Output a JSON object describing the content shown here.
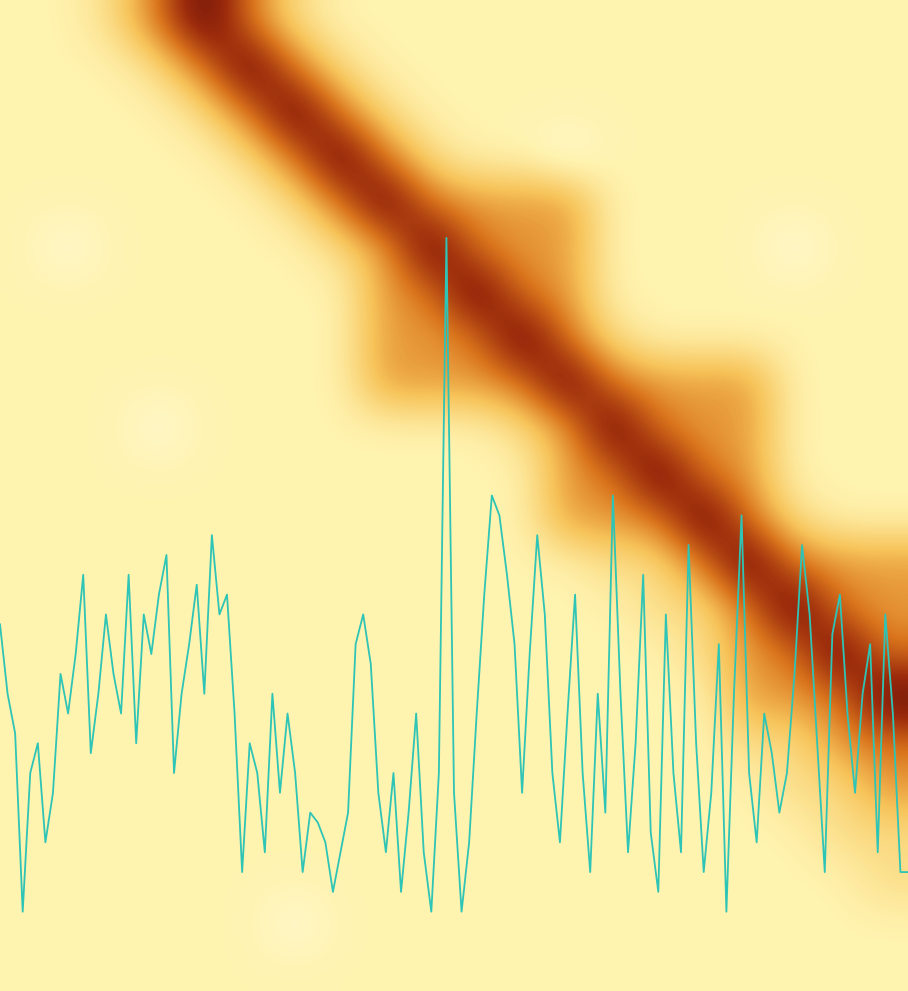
{
  "chart_data": {
    "type": "heatmap",
    "tick_labels": false,
    "color_range": [
      0,
      10
    ],
    "cells": [
      [
        2,
        2,
        3,
        6,
        10,
        6,
        3,
        2,
        2,
        2,
        2,
        2,
        2,
        2,
        2,
        2,
        2,
        2,
        2,
        2
      ],
      [
        2,
        2,
        2,
        3,
        6,
        10,
        6,
        3,
        2,
        2,
        2,
        2,
        2,
        2,
        2,
        2,
        2,
        2,
        2,
        2
      ],
      [
        2,
        2,
        2,
        2,
        3,
        6,
        10,
        6,
        3,
        2,
        2,
        2,
        2,
        2,
        2,
        2,
        2,
        2,
        2,
        2
      ],
      [
        2,
        2,
        2,
        2,
        2,
        3,
        6,
        10,
        6,
        3,
        2,
        2,
        1,
        2,
        2,
        2,
        2,
        2,
        2,
        2
      ],
      [
        2,
        2,
        2,
        2,
        2,
        2,
        3,
        6,
        10,
        6,
        5,
        5,
        5,
        2,
        2,
        2,
        2,
        2,
        2,
        2
      ],
      [
        2,
        1,
        2,
        2,
        2,
        2,
        2,
        3,
        5,
        10,
        6,
        5,
        5,
        2,
        2,
        2,
        2,
        1,
        2,
        2
      ],
      [
        2,
        2,
        2,
        2,
        2,
        2,
        2,
        2,
        5,
        6,
        10,
        6,
        5,
        2,
        2,
        2,
        2,
        2,
        2,
        2
      ],
      [
        2,
        2,
        2,
        2,
        2,
        2,
        2,
        2,
        5,
        5,
        6,
        10,
        6,
        3,
        2,
        2,
        2,
        2,
        2,
        2
      ],
      [
        2,
        2,
        2,
        2,
        2,
        2,
        2,
        2,
        5,
        5,
        5,
        6,
        10,
        6,
        5,
        5,
        5,
        2,
        2,
        2
      ],
      [
        2,
        2,
        2,
        1,
        2,
        2,
        2,
        2,
        2,
        2,
        2,
        3,
        5,
        10,
        6,
        5,
        5,
        2,
        2,
        2
      ],
      [
        2,
        2,
        2,
        2,
        2,
        2,
        2,
        2,
        2,
        2,
        2,
        2,
        5,
        6,
        10,
        6,
        5,
        2,
        2,
        2
      ],
      [
        2,
        2,
        2,
        2,
        2,
        2,
        2,
        2,
        2,
        2,
        2,
        2,
        5,
        5,
        6,
        10,
        6,
        3,
        2,
        2
      ],
      [
        2,
        2,
        2,
        2,
        2,
        2,
        2,
        2,
        2,
        2,
        2,
        2,
        2,
        3,
        3,
        6,
        10,
        6,
        5,
        5
      ],
      [
        2,
        2,
        2,
        2,
        2,
        2,
        2,
        2,
        2,
        2,
        2,
        2,
        2,
        2,
        3,
        3,
        6,
        10,
        6,
        5
      ],
      [
        2,
        2,
        2,
        2,
        2,
        2,
        2,
        2,
        2,
        2,
        2,
        2,
        2,
        2,
        2,
        3,
        5,
        6,
        10,
        6
      ],
      [
        2,
        2,
        2,
        2,
        2,
        2,
        2,
        2,
        2,
        2,
        2,
        2,
        2,
        2,
        2,
        2,
        5,
        5,
        6,
        10
      ],
      [
        2,
        2,
        2,
        2,
        2,
        2,
        2,
        2,
        2,
        2,
        2,
        2,
        2,
        2,
        2,
        2,
        3,
        3,
        5,
        6
      ],
      [
        2,
        2,
        2,
        2,
        2,
        2,
        2,
        2,
        2,
        2,
        2,
        2,
        2,
        2,
        2,
        2,
        2,
        3,
        3,
        5
      ],
      [
        2,
        2,
        2,
        2,
        2,
        2,
        2,
        2,
        2,
        2,
        2,
        2,
        2,
        2,
        2,
        2,
        2,
        2,
        3,
        3
      ],
      [
        2,
        2,
        2,
        2,
        2,
        2,
        2,
        2,
        2,
        2,
        2,
        2,
        2,
        2,
        2,
        2,
        2,
        2,
        2,
        3
      ],
      [
        2,
        2,
        2,
        2,
        2,
        2,
        1,
        2,
        2,
        2,
        2,
        2,
        2,
        2,
        2,
        2,
        2,
        2,
        2,
        2
      ],
      [
        2,
        2,
        2,
        2,
        2,
        2,
        2,
        2,
        2,
        2,
        2,
        2,
        2,
        2,
        2,
        2,
        2,
        2,
        2,
        2
      ]
    ],
    "xlim": [
      0,
      120
    ],
    "ylim": [
      0,
      100
    ],
    "series": [
      {
        "type": "line",
        "color": "#2ec4b6",
        "values": [
          37,
          30,
          26,
          8,
          22,
          25,
          15,
          20,
          32,
          28,
          34,
          42,
          24,
          30,
          38,
          32,
          28,
          42,
          25,
          38,
          34,
          40,
          44,
          22,
          30,
          35,
          41,
          30,
          46,
          38,
          40,
          28,
          12,
          25,
          22,
          14,
          30,
          20,
          28,
          22,
          12,
          18,
          17,
          15,
          10,
          14,
          18,
          35,
          38,
          33,
          20,
          14,
          22,
          10,
          18,
          28,
          14,
          8,
          22,
          76,
          20,
          8,
          15,
          28,
          40,
          50,
          48,
          42,
          35,
          20,
          34,
          46,
          38,
          22,
          15,
          28,
          40,
          22,
          12,
          30,
          18,
          50,
          30,
          14,
          25,
          42,
          16,
          10,
          38,
          22,
          14,
          45,
          25,
          12,
          20,
          35,
          8,
          30,
          48,
          22,
          15,
          28,
          24,
          18,
          22,
          32,
          45,
          38,
          25,
          12,
          36,
          40,
          28,
          20,
          30,
          35,
          14,
          38,
          28,
          12,
          12
        ]
      }
    ]
  }
}
